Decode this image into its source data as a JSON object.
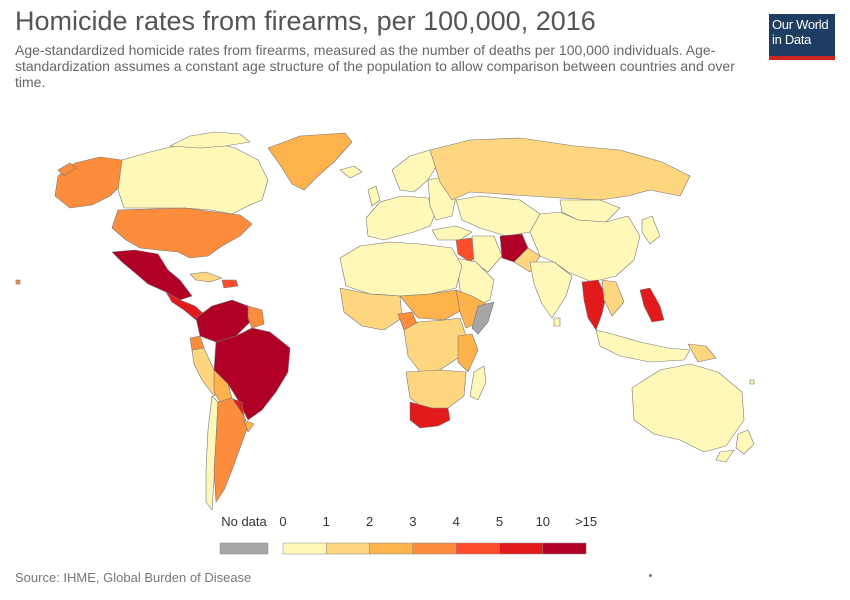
{
  "title": "Homicide rates from firearms, per 100,000, 2016",
  "subtitle": "Age-standardized homicide rates from firearms, measured as the number of deaths per 100,000 individuals. Age-standardization assumes a constant age structure of the population to allow comparison between countries and over time.",
  "logo": {
    "line1": "Our World",
    "line2": "in Data"
  },
  "source": "Source: IHME, Global Burden of Disease",
  "legend": {
    "no_data_label": "No data",
    "no_data_color": "#a6a6a6",
    "tick_labels": [
      "0",
      "1",
      "2",
      "3",
      "4",
      "5",
      "10",
      ">15"
    ],
    "bin_colors": [
      "#fff8b9",
      "#fed680",
      "#feb24c",
      "#fd8d3c",
      "#fc4e2a",
      "#e31a1c",
      "#b10026"
    ]
  },
  "colors": {
    "ocean": "#ffffff",
    "border": "#777777"
  }
}
